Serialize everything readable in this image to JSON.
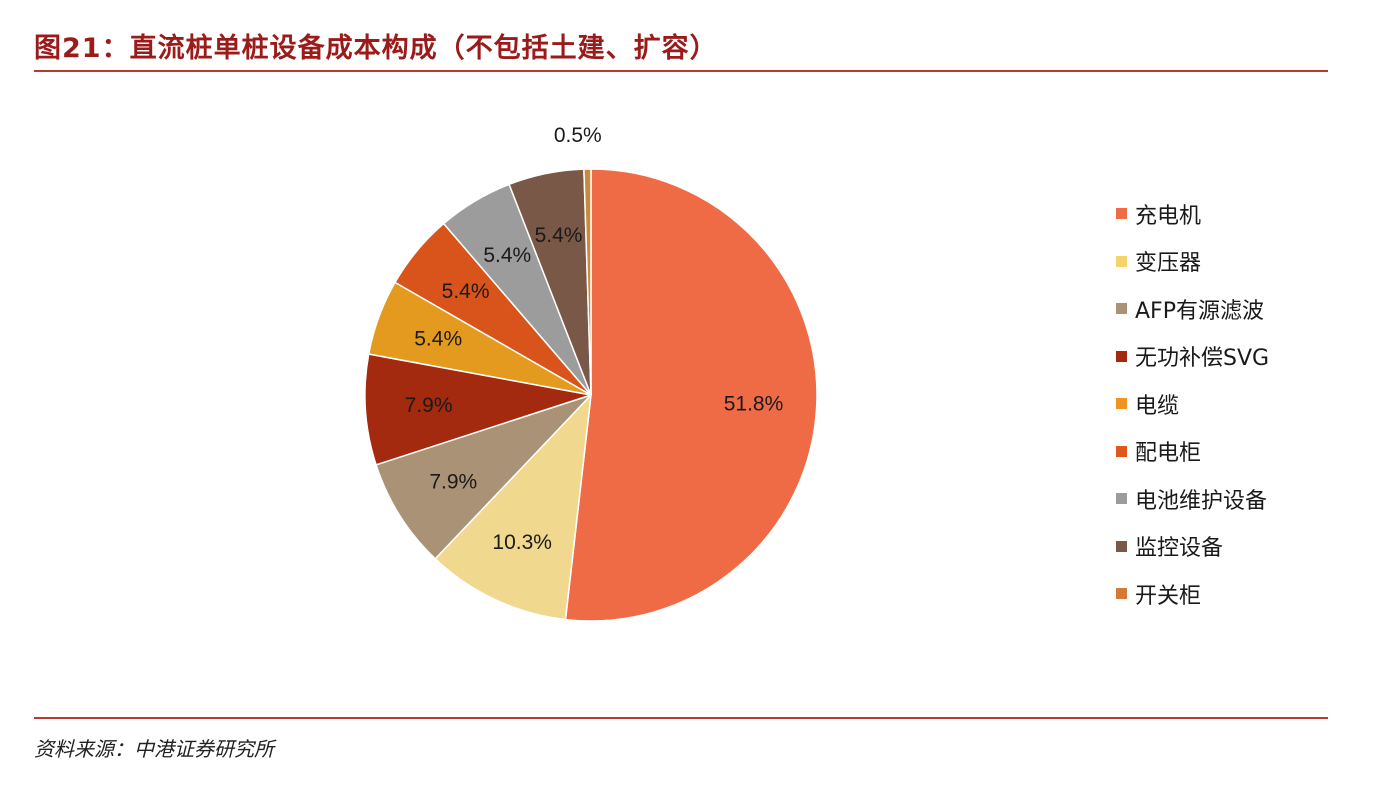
{
  "title": "图21：直流桩单桩设备成本构成（不包括土建、扩容）",
  "source": "资料来源：中港证券研究所",
  "chart_data": {
    "type": "pie",
    "categories": [
      "充电机",
      "变压器",
      "AFP有源滤波",
      "无功补偿SVG",
      "电缆",
      "配电柜",
      "电池维护设备",
      "监控设备",
      "开关柜"
    ],
    "values": [
      51.8,
      10.3,
      7.9,
      7.9,
      5.4,
      5.4,
      5.4,
      5.4,
      0.5
    ],
    "labels": [
      "51.8%",
      "10.3%",
      "7.9%",
      "7.9%",
      "5.4%",
      "5.4%",
      "5.4%",
      "5.4%",
      "0.5%"
    ],
    "colors": [
      "#ee6b46",
      "#f0d98f",
      "#a99276",
      "#a32a0e",
      "#e4991f",
      "#d9541a",
      "#9c9c9c",
      "#7a5848",
      "#c98a3c"
    ],
    "label_colors": [
      "#ee6b46",
      "#f7d26b",
      "#a99276",
      "#a32a0e",
      "#f09321",
      "#e0561c",
      "#9c9c9c",
      "#7a5848",
      "#d47a34"
    ],
    "start": "12 o'clock",
    "direction": "clockwise",
    "legend_position": "right"
  }
}
